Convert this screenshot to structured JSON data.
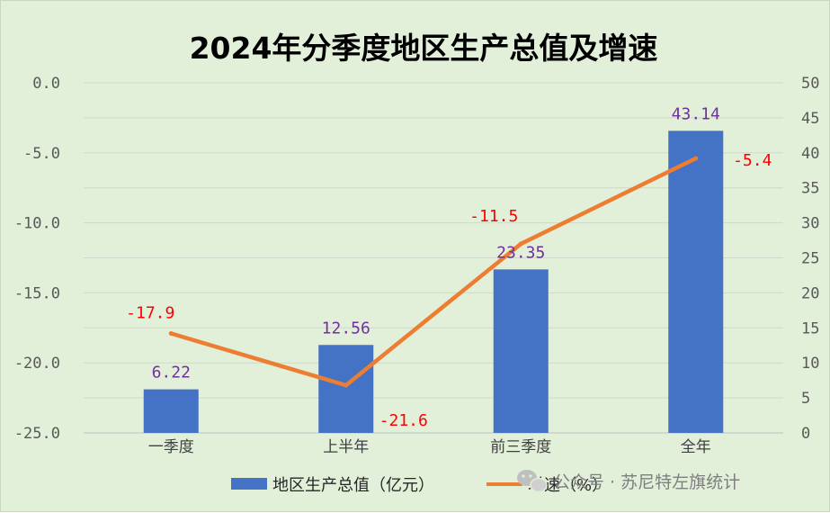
{
  "chart_data": {
    "type": "bar+line",
    "title": "2024年分季度地区生产总值及增速",
    "categories": [
      "一季度",
      "上半年",
      "前三季度",
      "全年"
    ],
    "series": [
      {
        "name": "地区生产总值（亿元）",
        "type": "bar",
        "axis": "right",
        "values": [
          6.22,
          12.56,
          23.35,
          43.14
        ],
        "labels": [
          "6.22",
          "12.56",
          "23.35",
          "43.14"
        ],
        "color": "#4472c4"
      },
      {
        "name": "增速（%）",
        "type": "line",
        "axis": "left",
        "values": [
          -17.9,
          -21.6,
          -11.5,
          -5.4
        ],
        "labels": [
          "-17.9",
          "-21.6",
          "-11.5",
          "-5.4"
        ],
        "color": "#ed7d31"
      }
    ],
    "left_axis": {
      "ylim": [
        -25,
        0
      ],
      "ticks": [
        "0.0",
        "-5.0",
        "-10.0",
        "-15.0",
        "-20.0",
        "-25.0"
      ],
      "tick_values": [
        0,
        -5,
        -10,
        -15,
        -20,
        -25
      ]
    },
    "right_axis": {
      "ylim": [
        0,
        50
      ],
      "ticks": [
        "50",
        "45",
        "40",
        "35",
        "30",
        "25",
        "20",
        "15",
        "10",
        "5",
        "0"
      ],
      "tick_values": [
        50,
        45,
        40,
        35,
        30,
        25,
        20,
        15,
        10,
        5,
        0
      ]
    },
    "grid": true,
    "legend_position": "bottom",
    "bar_label_color": "#7030a0",
    "line_label_color": "#ff0000"
  },
  "watermark": {
    "text": "公众号 · 苏尼特左旗统计",
    "icon": "wechat-icon"
  }
}
